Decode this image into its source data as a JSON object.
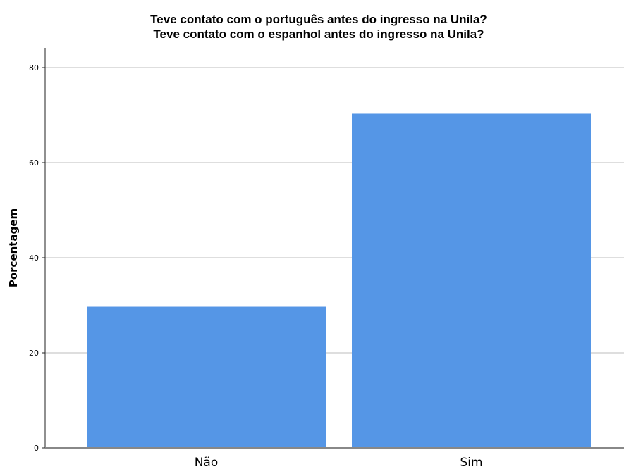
{
  "chart_data": {
    "type": "bar",
    "title": "Teve contato com o português antes do ingresso na Unila?",
    "subtitle": "Teve contato com o espanhol antes do ingresso na Unila?",
    "xlabel": "",
    "ylabel": "Porcentagem",
    "categories": [
      "Não",
      "Sim"
    ],
    "values": [
      29.7,
      70.3
    ],
    "ylim": [
      0,
      84
    ],
    "yticks": [
      0,
      20,
      40,
      60,
      80
    ],
    "grid": true,
    "bar_color": "#5596e6"
  }
}
